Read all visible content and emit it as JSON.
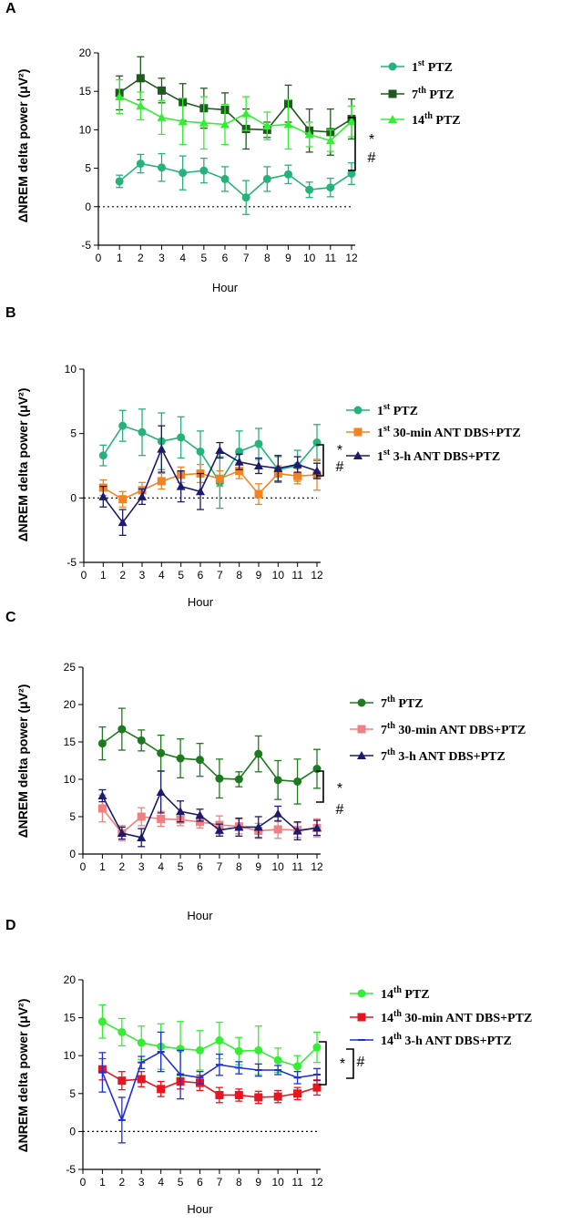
{
  "chart_data": [
    {
      "type": "line",
      "panel": "A",
      "ylabel": "ΔNREM delta power (μV²)",
      "xlabel": "Hour",
      "xlim": [
        0,
        12
      ],
      "ylim": [
        -5,
        20
      ],
      "yticks": [
        -5,
        0,
        5,
        10,
        15,
        20
      ],
      "xticks": [
        0,
        1,
        2,
        3,
        4,
        5,
        6,
        7,
        8,
        9,
        10,
        11,
        12
      ],
      "x": [
        1,
        2,
        3,
        4,
        5,
        6,
        7,
        8,
        9,
        10,
        11,
        12
      ],
      "reference_line_y": 0,
      "significance": [
        "*",
        "#"
      ],
      "series": [
        {
          "name": "1st PTZ",
          "sup": "st",
          "pre": "1",
          "post": " PTZ",
          "color": "#26B37A",
          "marker": "circle",
          "values": [
            3.3,
            5.6,
            5.1,
            4.4,
            4.7,
            3.6,
            1.2,
            3.6,
            4.2,
            2.2,
            2.5,
            4.3
          ],
          "errors": [
            0.8,
            1.2,
            1.8,
            2.2,
            1.6,
            1.6,
            2.2,
            1.6,
            1.2,
            1.0,
            1.2,
            1.4
          ]
        },
        {
          "name": "7th PTZ",
          "sup": "th",
          "pre": "7",
          "post": " PTZ",
          "color": "#1E5A1E",
          "marker": "square",
          "values": [
            14.8,
            16.7,
            15.1,
            13.6,
            12.8,
            12.6,
            10.1,
            10.0,
            13.4,
            9.9,
            9.7,
            11.4
          ],
          "errors": [
            2.2,
            2.8,
            1.6,
            2.4,
            2.6,
            2.2,
            2.6,
            1.0,
            2.4,
            2.8,
            3.0,
            2.6
          ]
        },
        {
          "name": "14th PTZ",
          "sup": "th",
          "pre": "14",
          "post": " PTZ",
          "color": "#33EE33",
          "marker": "triangle",
          "values": [
            14.3,
            13.1,
            11.6,
            11.1,
            10.9,
            10.7,
            12.1,
            10.5,
            10.7,
            9.4,
            8.6,
            11.1
          ],
          "errors": [
            2.2,
            1.8,
            2.2,
            3.0,
            3.4,
            2.6,
            2.2,
            1.8,
            3.2,
            1.6,
            1.4,
            2.0
          ]
        }
      ]
    },
    {
      "type": "line",
      "panel": "B",
      "ylabel": "ΔNREM delta power (μV²)",
      "xlabel": "Hour",
      "xlim": [
        0,
        12
      ],
      "ylim": [
        -5,
        10
      ],
      "yticks": [
        -5,
        0,
        5,
        10
      ],
      "xticks": [
        0,
        1,
        2,
        3,
        4,
        5,
        6,
        7,
        8,
        9,
        10,
        11,
        12
      ],
      "x": [
        1,
        2,
        3,
        4,
        5,
        6,
        7,
        8,
        9,
        10,
        11,
        12
      ],
      "reference_line_y": 0,
      "significance": [
        "*",
        "#"
      ],
      "series": [
        {
          "name": "1st PTZ",
          "sup": "st",
          "pre": "1",
          "post": " PTZ",
          "color": "#26B37A",
          "marker": "circle",
          "values": [
            3.3,
            5.6,
            5.1,
            4.4,
            4.7,
            3.6,
            1.2,
            3.6,
            4.2,
            2.2,
            2.5,
            4.3
          ],
          "errors": [
            0.8,
            1.2,
            1.8,
            2.2,
            1.6,
            1.6,
            2.0,
            1.6,
            1.2,
            1.0,
            1.2,
            1.4
          ]
        },
        {
          "name": "1st 30-min ANT DBS+PTZ",
          "sup": "st",
          "pre": "1",
          "post": " 30-min ANT DBS+PTZ",
          "color": "#F58220",
          "marker": "square",
          "values": [
            0.8,
            -0.1,
            0.6,
            1.3,
            1.8,
            1.9,
            1.5,
            2.1,
            0.3,
            1.9,
            1.7,
            1.8
          ],
          "errors": [
            0.6,
            0.6,
            0.6,
            0.6,
            0.6,
            0.7,
            0.6,
            0.6,
            0.8,
            0.6,
            0.6,
            1.2
          ]
        },
        {
          "name": "1st 3-h ANT DBS+PTZ",
          "sup": "st",
          "pre": "1",
          "post": " 3-h ANT DBS+PTZ",
          "color": "#1A1A6E",
          "marker": "triangle",
          "values": [
            0.1,
            -1.9,
            0.1,
            3.8,
            0.9,
            0.5,
            3.7,
            2.8,
            2.5,
            2.3,
            2.6,
            2.1
          ],
          "errors": [
            0.8,
            1.0,
            0.6,
            1.8,
            1.2,
            1.4,
            0.6,
            0.6,
            0.6,
            1.0,
            0.6,
            0.6
          ]
        }
      ]
    },
    {
      "type": "line",
      "panel": "C",
      "ylabel": "ΔNREM delta power (μV²)",
      "xlabel": "Hour",
      "xlim": [
        0,
        12
      ],
      "ylim": [
        0,
        25
      ],
      "yticks": [
        0,
        5,
        10,
        15,
        20,
        25
      ],
      "xticks": [
        0,
        1,
        2,
        3,
        4,
        5,
        6,
        7,
        8,
        9,
        10,
        11,
        12
      ],
      "x": [
        1,
        2,
        3,
        4,
        5,
        6,
        7,
        8,
        9,
        10,
        11,
        12
      ],
      "reference_line_y": null,
      "significance": [
        "*",
        "#"
      ],
      "series": [
        {
          "name": "7th PTZ",
          "sup": "th",
          "pre": "7",
          "post": " PTZ",
          "color": "#1E7A1E",
          "marker": "circle",
          "values": [
            14.8,
            16.7,
            15.2,
            13.5,
            12.8,
            12.6,
            10.1,
            10.0,
            13.4,
            9.9,
            9.7,
            11.4
          ],
          "errors": [
            2.2,
            2.8,
            1.4,
            2.4,
            2.6,
            2.2,
            2.6,
            1.0,
            2.4,
            2.6,
            3.0,
            2.6
          ]
        },
        {
          "name": "7th 30-min ANT DBS+PTZ",
          "sup": "th",
          "pre": "7",
          "post": " 30-min ANT DBS+PTZ",
          "color": "#F08080",
          "marker": "square",
          "values": [
            6.1,
            2.8,
            5.0,
            4.7,
            4.6,
            4.3,
            3.9,
            3.7,
            3.1,
            3.3,
            3.2,
            3.5
          ],
          "errors": [
            1.8,
            1.0,
            1.2,
            1.0,
            0.8,
            0.8,
            1.2,
            1.0,
            1.0,
            1.2,
            1.0,
            1.2
          ]
        },
        {
          "name": "7th 3-h ANT DBS+PTZ",
          "sup": "th",
          "pre": "7",
          "post": " 3-h ANT DBS+PTZ",
          "color": "#1A1A6E",
          "marker": "triangle",
          "values": [
            7.8,
            2.8,
            2.2,
            8.3,
            5.7,
            5.2,
            3.2,
            3.6,
            3.6,
            5.4,
            3.1,
            3.5
          ],
          "errors": [
            0.8,
            0.8,
            1.2,
            2.8,
            1.4,
            0.8,
            0.8,
            1.2,
            1.4,
            1.0,
            1.2,
            1.0
          ]
        }
      ]
    },
    {
      "type": "line",
      "panel": "D",
      "ylabel": "ΔNREM delta power (μV²)",
      "xlabel": "Hour",
      "xlim": [
        0,
        12
      ],
      "ylim": [
        -5,
        20
      ],
      "yticks": [
        -5,
        0,
        5,
        10,
        15,
        20
      ],
      "xticks": [
        0,
        1,
        2,
        3,
        4,
        5,
        6,
        7,
        8,
        9,
        10,
        11,
        12
      ],
      "x": [
        1,
        2,
        3,
        4,
        5,
        6,
        7,
        8,
        9,
        10,
        11,
        12
      ],
      "reference_line_y": 0,
      "significance": [
        "*",
        "#"
      ],
      "series": [
        {
          "name": "14th PTZ",
          "sup": "th",
          "pre": "14",
          "post": " PTZ",
          "color": "#33EE33",
          "marker": "circle",
          "values": [
            14.5,
            13.1,
            11.7,
            11.2,
            10.9,
            10.7,
            12.0,
            10.6,
            10.7,
            9.4,
            8.6,
            11.1
          ],
          "errors": [
            2.2,
            1.8,
            2.2,
            3.0,
            3.6,
            2.6,
            2.4,
            1.8,
            3.2,
            1.6,
            1.4,
            2.0
          ]
        },
        {
          "name": "14th 30-min ANT DBS+PTZ",
          "sup": "th",
          "pre": "14",
          "post": " 30-min ANT DBS+PTZ",
          "color": "#E8141E",
          "marker": "square",
          "values": [
            8.2,
            6.7,
            6.9,
            5.6,
            6.6,
            6.4,
            4.8,
            4.8,
            4.5,
            4.6,
            5.0,
            5.8
          ],
          "errors": [
            1.4,
            1.2,
            1.0,
            1.0,
            1.0,
            1.0,
            1.0,
            0.8,
            0.8,
            0.8,
            0.8,
            1.0
          ]
        },
        {
          "name": "14th 3-h ANT DBS+PTZ",
          "sup": "th",
          "pre": "14",
          "post": " 3-h ANT DBS+PTZ",
          "color": "#1F2EDB",
          "marker": "line",
          "values": [
            7.8,
            1.5,
            9.1,
            10.5,
            7.5,
            7.1,
            8.8,
            8.4,
            8.1,
            8.1,
            7.1,
            7.5
          ],
          "errors": [
            2.6,
            3.0,
            0.8,
            2.6,
            3.2,
            0.8,
            1.4,
            0.8,
            0.8,
            0.6,
            0.8,
            0.8
          ]
        }
      ]
    }
  ]
}
